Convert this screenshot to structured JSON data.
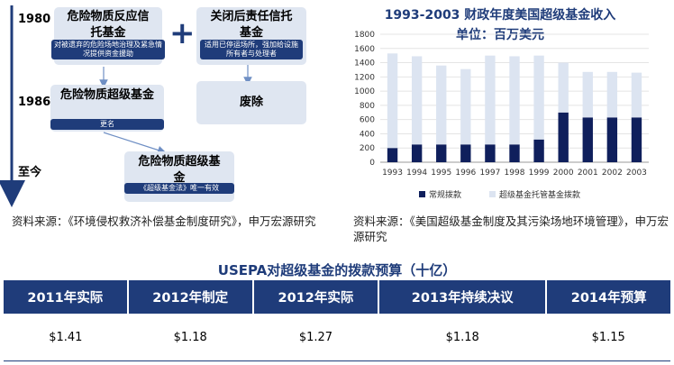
{
  "diagram": {
    "years": [
      "1980",
      "1986",
      "至今"
    ],
    "box1": {
      "title": "危险物质反应信托基金",
      "tag": "对被遗弃的危险场地治理及紧急情况提供资金援助"
    },
    "box2": {
      "title": "关闭后责任信托基金",
      "tag": "适用已停运场所，强加给设施所有者与处理者"
    },
    "box3": {
      "title": "危险物质超级基金",
      "tag": "更名"
    },
    "box4": {
      "title": "废除"
    },
    "box5": {
      "title": "危险物质超级基金",
      "tag": "《超级基金法》唯一有效"
    },
    "plus": "+",
    "source": "资料来源：《环境侵权救济补偿基金制度研究》，申万宏源研究"
  },
  "chart_data": {
    "type": "bar",
    "stacked": true,
    "title": "1993-2003 财政年度美国超级基金收入",
    "subtitle": "单位：百万美元",
    "categories": [
      "1993",
      "1994",
      "1995",
      "1996",
      "1997",
      "1998",
      "1999",
      "2000",
      "2001",
      "2002",
      "2003"
    ],
    "series": [
      {
        "name": "常规拨款",
        "color": "#0f1f5c",
        "values": [
          200,
          250,
          250,
          250,
          250,
          250,
          320,
          700,
          630,
          630,
          630
        ]
      },
      {
        "name": "超级基金托管基金拨款",
        "color": "#dce4f1",
        "values": [
          1330,
          1240,
          1110,
          1060,
          1250,
          1240,
          1180,
          700,
          640,
          640,
          630
        ]
      }
    ],
    "ylim": [
      0,
      1800
    ],
    "yticks": [
      0,
      200,
      400,
      600,
      800,
      1000,
      1200,
      1400,
      1600,
      1800
    ],
    "legend_position": "bottom",
    "source": "资料来源：《美国超级基金制度及其污染场地环境管理》，申万宏源研究"
  },
  "table": {
    "title": "USEPA对超级基金的拨款预算（十亿）",
    "headers": [
      "2011年实际",
      "2012年制定",
      "2012年实际",
      "2013年持续决议",
      "2014年预算"
    ],
    "values": [
      "$1.41",
      "$1.18",
      "$1.27",
      "$1.18",
      "$1.15"
    ]
  }
}
